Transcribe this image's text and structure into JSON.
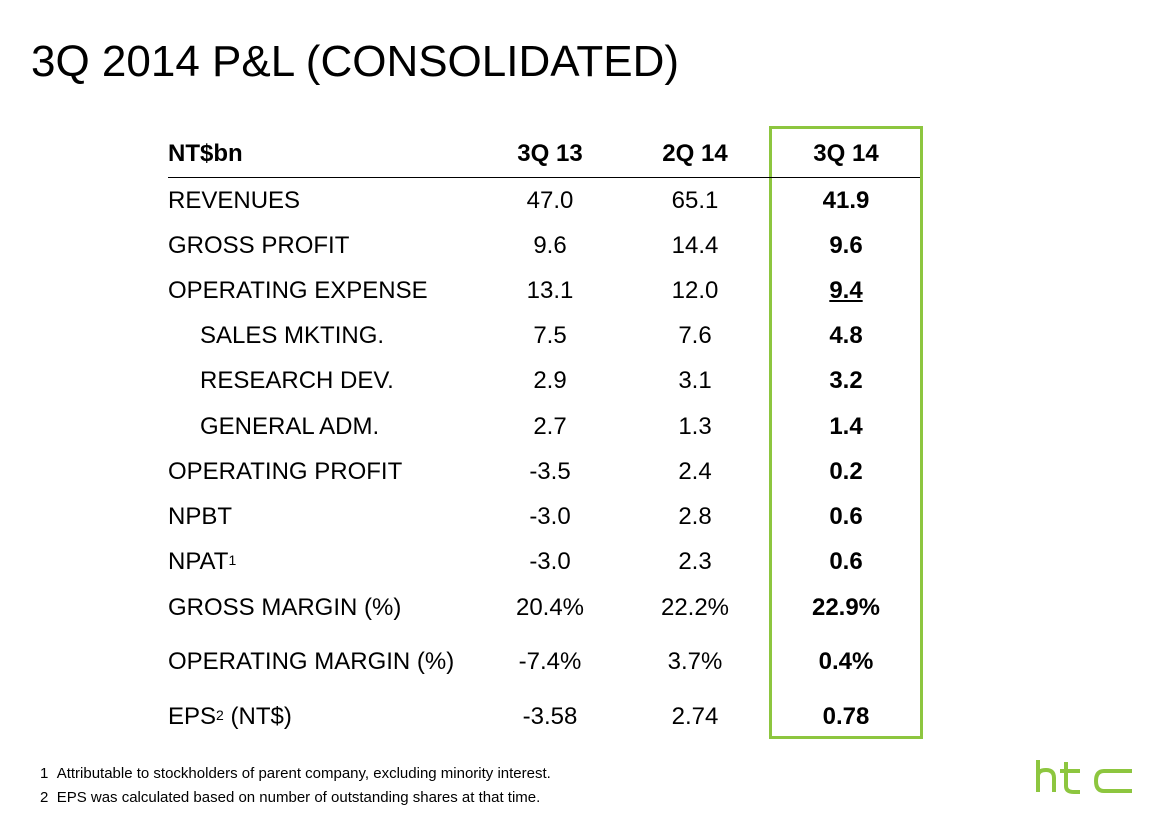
{
  "title": "3Q 2014 P&L (CONSOLIDATED)",
  "table": {
    "header": {
      "label": "NT$bn",
      "col1": "3Q 13",
      "col2": "2Q 14",
      "col3": "3Q 14"
    },
    "rows": [
      {
        "label": "REVENUES",
        "sup": "",
        "suffix": "",
        "indent": false,
        "col1": "47.0",
        "col2": "65.1",
        "col3": "41.9"
      },
      {
        "label": "GROSS PROFIT",
        "sup": "",
        "suffix": "",
        "indent": false,
        "col1": "9.6",
        "col2": "14.4",
        "col3": "9.6"
      },
      {
        "label": "OPERATING EXPENSE",
        "sup": "",
        "suffix": "",
        "indent": false,
        "col1": "13.1",
        "col2": "12.0",
        "col3": "9.4"
      },
      {
        "label": "SALES MKTING.",
        "sup": "",
        "suffix": "",
        "indent": true,
        "col1": "7.5",
        "col2": "7.6",
        "col3": "4.8"
      },
      {
        "label": "RESEARCH DEV.",
        "sup": "",
        "suffix": "",
        "indent": true,
        "col1": "2.9",
        "col2": "3.1",
        "col3": "3.2"
      },
      {
        "label": "GENERAL ADM.",
        "sup": "",
        "suffix": "",
        "indent": true,
        "col1": "2.7",
        "col2": "1.3",
        "col3": "1.4"
      },
      {
        "label": "OPERATING PROFIT",
        "sup": "",
        "suffix": "",
        "indent": false,
        "col1": "-3.5",
        "col2": "2.4",
        "col3": "0.2"
      },
      {
        "label": "NPBT",
        "sup": "",
        "suffix": "",
        "indent": false,
        "col1": "-3.0",
        "col2": "2.8",
        "col3": "0.6"
      },
      {
        "label": "NPAT",
        "sup": "1",
        "suffix": "",
        "indent": false,
        "col1": "-3.0",
        "col2": "2.3",
        "col3": "0.6"
      },
      {
        "label": "GROSS MARGIN (%)",
        "sup": "",
        "suffix": "",
        "indent": false,
        "col1": "20.4%",
        "col2": "22.2%",
        "col3": "22.9%"
      },
      {
        "label": "OPERATING MARGIN (%)",
        "sup": "",
        "suffix": "",
        "indent": false,
        "col1": "-7.4%",
        "col2": "3.7%",
        "col3": "0.4%"
      },
      {
        "label": "EPS",
        "sup": "2",
        "suffix": " (NT$)",
        "indent": false,
        "col1": "-3.58",
        "col2": "2.74",
        "col3": "0.78"
      }
    ]
  },
  "footnotes": [
    {
      "num": "1",
      "text": "Attributable to stockholders of parent company, excluding minority interest."
    },
    {
      "num": "2",
      "text": "EPS was calculated based on number of outstanding shares at that time."
    }
  ],
  "logo": {
    "text": "htc",
    "color": "#8dc63f"
  },
  "colors": {
    "highlight": "#8dc63f",
    "text": "#000000"
  }
}
